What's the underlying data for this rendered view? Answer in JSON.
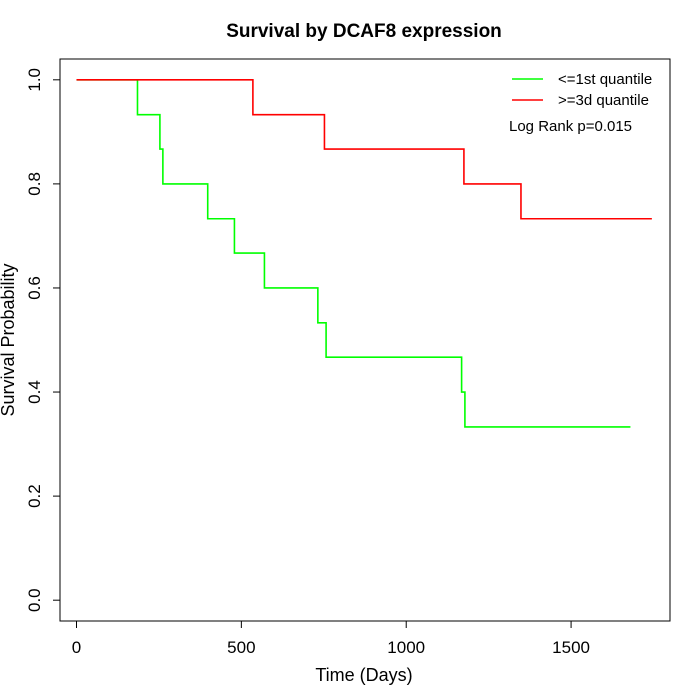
{
  "chart_data": {
    "type": "line",
    "title": "Survival by DCAF8 expression",
    "xlabel": "Time (Days)",
    "ylabel": "Survival Probability",
    "xlim": [
      -50,
      1800
    ],
    "ylim": [
      -0.04,
      1.04
    ],
    "xticks": [
      0,
      500,
      1000,
      1500
    ],
    "yticks": [
      0.0,
      0.2,
      0.4,
      0.6,
      0.8,
      1.0
    ],
    "xtick_labels": [
      "0",
      "500",
      "1000",
      "1500"
    ],
    "ytick_labels": [
      "0.0",
      "0.2",
      "0.4",
      "0.6",
      "0.8",
      "1.0"
    ],
    "grid": false,
    "legend_position": "top-right",
    "annotation": "Log Rank p=0.015",
    "series": [
      {
        "name": "<=1st quantile",
        "color": "#00ff00",
        "x": [
          0,
          185,
          253,
          262,
          398,
          479,
          570,
          732,
          757,
          1168,
          1178,
          1680
        ],
        "y": [
          1.0,
          0.933,
          0.867,
          0.8,
          0.733,
          0.667,
          0.6,
          0.533,
          0.467,
          0.4,
          0.333,
          0.333
        ]
      },
      {
        "name": ">=3d quantile",
        "color": "#ff0000",
        "x": [
          0,
          535,
          752,
          1175,
          1348,
          1745
        ],
        "y": [
          1.0,
          0.933,
          0.867,
          0.8,
          0.733,
          0.733
        ]
      }
    ]
  }
}
